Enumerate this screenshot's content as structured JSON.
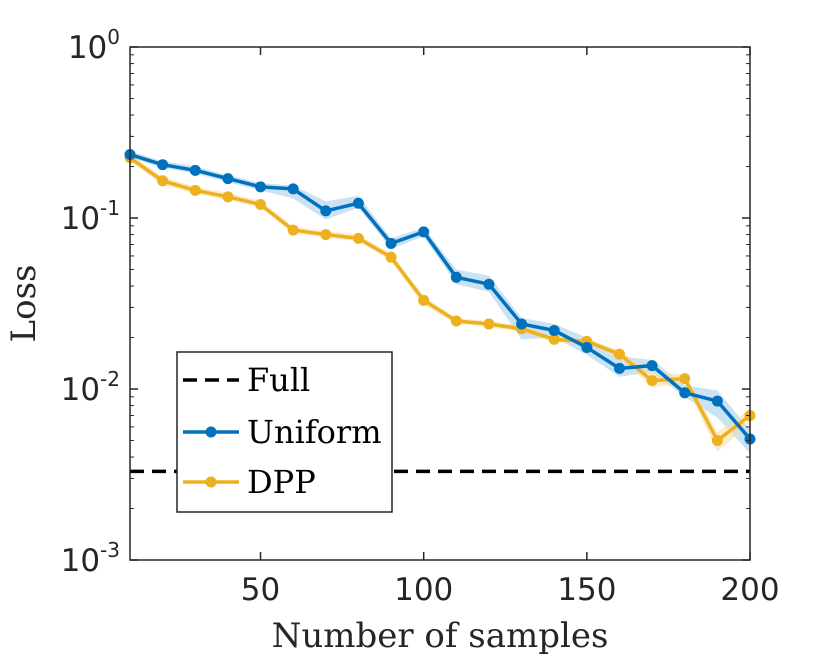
{
  "chart_data": {
    "type": "line",
    "title": "",
    "xlabel": "Number of samples",
    "ylabel": "Loss",
    "xlim": [
      10,
      200
    ],
    "ylim": [
      0.001,
      1
    ],
    "yscale": "log",
    "x_ticks": [
      50,
      100,
      150,
      200
    ],
    "x_tick_labels": [
      "50",
      "100",
      "150",
      "200"
    ],
    "y_ticks": [
      0.001,
      0.01,
      0.1,
      1
    ],
    "y_tick_labels": [
      {
        "base": "10",
        "exp": "-3"
      },
      {
        "base": "10",
        "exp": "-2"
      },
      {
        "base": "10",
        "exp": "-1"
      },
      {
        "base": "10",
        "exp": "0"
      }
    ],
    "legend_position": "bottom-left",
    "reference_line": {
      "name": "Full",
      "value": 0.0033,
      "color": "#000000",
      "style": "dashed"
    },
    "x": [
      10,
      20,
      30,
      40,
      50,
      60,
      70,
      80,
      90,
      100,
      110,
      120,
      130,
      140,
      150,
      160,
      170,
      180,
      190,
      200
    ],
    "series": [
      {
        "name": "Uniform",
        "color": "#0072BD",
        "band_color": "#9ECAE9",
        "values": [
          0.235,
          0.205,
          0.19,
          0.17,
          0.152,
          0.148,
          0.11,
          0.122,
          0.071,
          0.083,
          0.045,
          0.041,
          0.024,
          0.022,
          0.0175,
          0.0132,
          0.0137,
          0.0095,
          0.0085,
          0.0051
        ],
        "upper": [
          0.245,
          0.215,
          0.2,
          0.178,
          0.16,
          0.155,
          0.125,
          0.135,
          0.076,
          0.088,
          0.05,
          0.046,
          0.026,
          0.024,
          0.02,
          0.0155,
          0.0148,
          0.0105,
          0.0098,
          0.0058
        ],
        "lower": [
          0.225,
          0.197,
          0.182,
          0.162,
          0.145,
          0.13,
          0.098,
          0.115,
          0.066,
          0.078,
          0.041,
          0.037,
          0.0195,
          0.02,
          0.0158,
          0.0118,
          0.0125,
          0.009,
          0.0068,
          0.0042
        ]
      },
      {
        "name": "DPP",
        "color": "#EDB120",
        "band_color": "#F4DCA0",
        "values": [
          0.225,
          0.165,
          0.145,
          0.133,
          0.12,
          0.085,
          0.08,
          0.076,
          0.059,
          0.033,
          0.025,
          0.024,
          0.0225,
          0.0195,
          0.019,
          0.016,
          0.0112,
          0.0115,
          0.005,
          0.007
        ],
        "upper": [
          0.235,
          0.175,
          0.152,
          0.14,
          0.126,
          0.089,
          0.084,
          0.08,
          0.062,
          0.035,
          0.026,
          0.025,
          0.0235,
          0.0205,
          0.0198,
          0.0168,
          0.0125,
          0.0122,
          0.0056,
          0.0076
        ],
        "lower": [
          0.215,
          0.156,
          0.139,
          0.127,
          0.115,
          0.081,
          0.077,
          0.073,
          0.056,
          0.031,
          0.024,
          0.023,
          0.0215,
          0.0188,
          0.0182,
          0.0152,
          0.0102,
          0.0108,
          0.0043,
          0.0063
        ]
      }
    ]
  }
}
